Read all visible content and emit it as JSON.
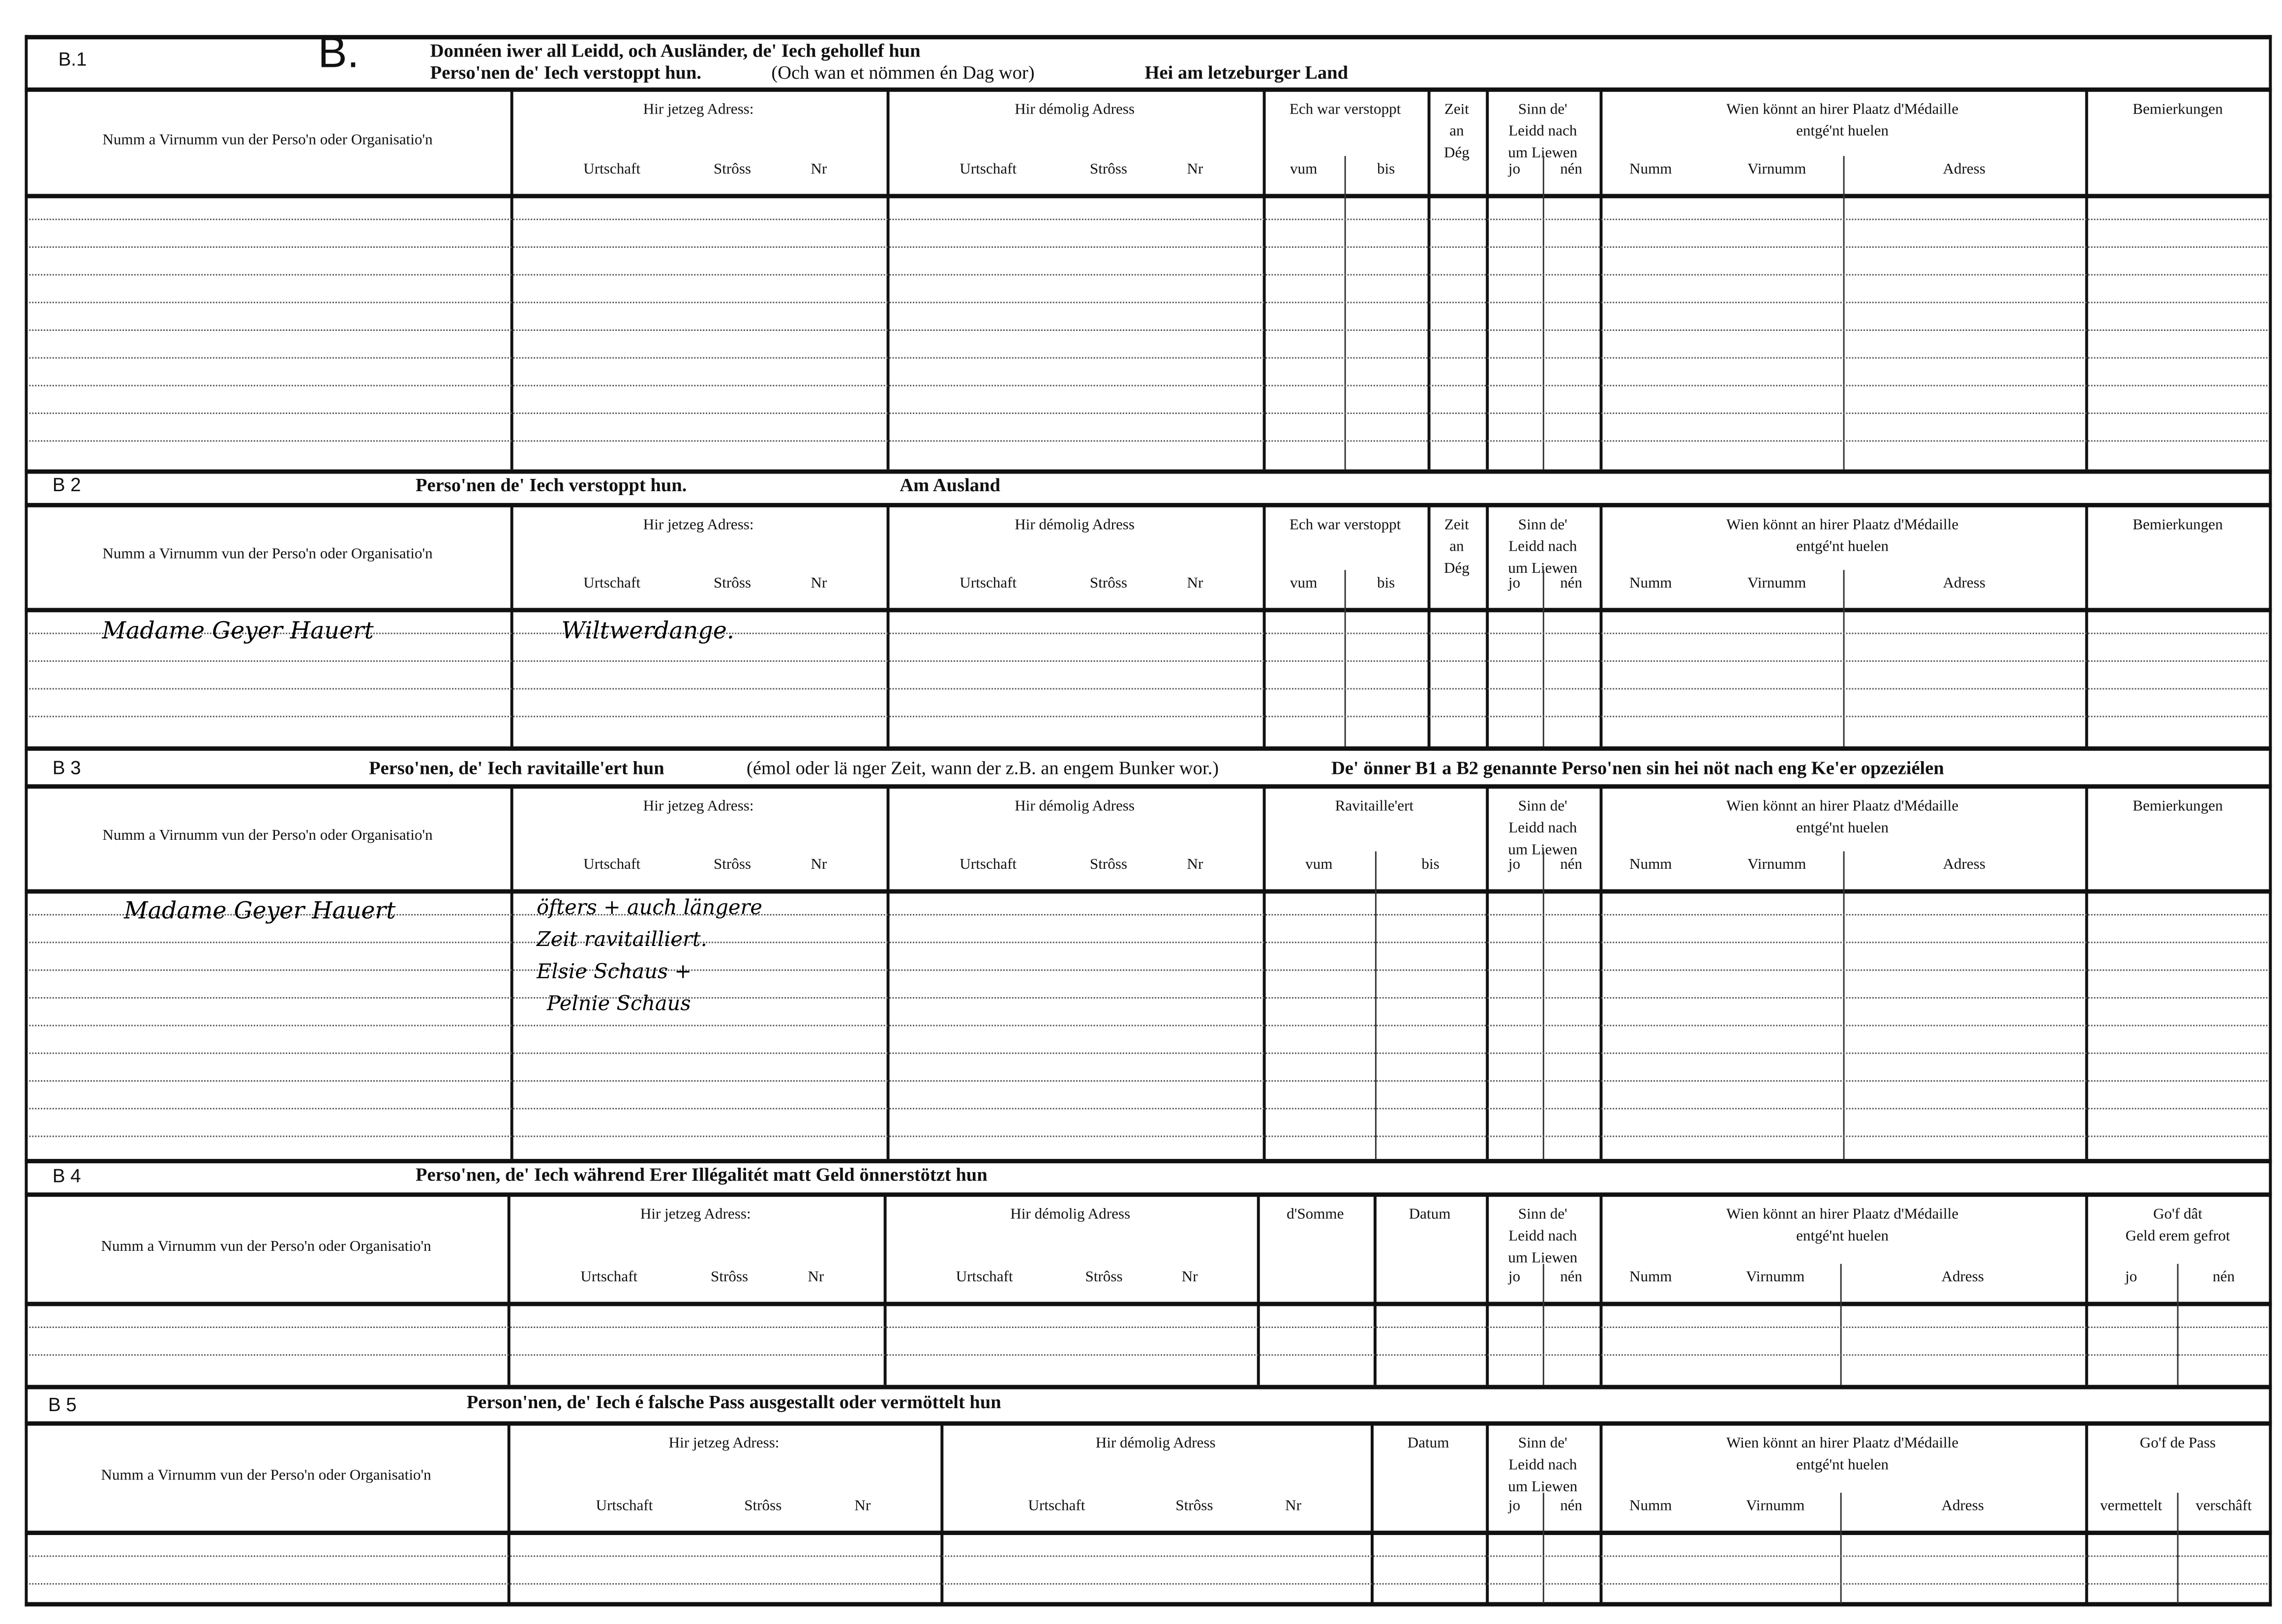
{
  "document": {
    "big_letter": "B."
  },
  "sections": [
    {
      "code": "B.1",
      "title_segments": [
        "Donnéen iwer all Leidd, och Ausländer, de' Iech gehollef hun",
        "Perso'nen de' Iech verstoppt hun.",
        "(Och wan et nömmen én Dag wor)",
        "Hei am letzeburger Land"
      ],
      "headers": [
        {
          "label": "Numm a Virnumm vun der Perso'n oder Organisatio'n"
        },
        {
          "label": "Hir jetzeg Adress:",
          "sub": [
            "Urtschaft",
            "Strôss",
            "Nr"
          ]
        },
        {
          "label": "Hir démolig Adress",
          "sub": [
            "Urtschaft",
            "Strôss",
            "Nr"
          ]
        },
        {
          "label": "Ech war verstoppt",
          "sub": [
            "vum",
            "bis"
          ]
        },
        {
          "label": "Zeit\nan\nDég"
        },
        {
          "label": "Sinn  de'\nLeidd  nach\num Liewen",
          "sub": [
            "jo",
            "nén"
          ]
        },
        {
          "label": "Wien  könnt  an  hirer  Plaatz  d'Médaille\nentgé'nt huelen",
          "sub": [
            "Numm",
            "Virnumm",
            "Adress"
          ]
        },
        {
          "label": "Bemierkungen"
        }
      ],
      "entries": []
    },
    {
      "code": "B 2",
      "title_segments": [
        "Perso'nen de' Iech verstoppt hun.",
        "Am Ausland"
      ],
      "headers": [
        {
          "label": "Numm a Virnumm vun der Perso'n oder Organisatio'n"
        },
        {
          "label": "Hir jetzeg Adress:",
          "sub": [
            "Urtschaft",
            "Strôss",
            "Nr"
          ]
        },
        {
          "label": "Hir démolig Adress",
          "sub": [
            "Urtschaft",
            "Strôss",
            "Nr"
          ]
        },
        {
          "label": "Ech war verstoppt",
          "sub": [
            "vum",
            "bis"
          ]
        },
        {
          "label": "Zeit\nan\nDég"
        },
        {
          "label": "Sinn  de'\nLeidd  nach\num Liewen",
          "sub": [
            "jo",
            "nén"
          ]
        },
        {
          "label": "Wien  könnt  an  hirer  Plaatz  d'Médaille\nentgé'nt huelen",
          "sub": [
            "Numm",
            "Virnumm",
            "Adress"
          ]
        },
        {
          "label": "Bemierkungen"
        }
      ],
      "entries": [
        "Madame Geyer Hauert",
        "Wiltwerdange."
      ]
    },
    {
      "code": "B 3",
      "title_segments": [
        "Perso'nen, de' Iech ravitaille'ert hun",
        "(émol oder lä nger Zeit, wann der z.B. an engem Bunker wor.)",
        "De' önner B1 a B2 genannte Perso'nen sin hei nöt nach eng Ke'er opzeziélen"
      ],
      "headers": [
        {
          "label": "Numm a Virnumm vun der Perso'n oder Organisatio'n"
        },
        {
          "label": "Hir jetzeg Adress:",
          "sub": [
            "Urtschaft",
            "Strôss",
            "Nr"
          ]
        },
        {
          "label": "Hir démolig Adress",
          "sub": [
            "Urtschaft",
            "Strôss",
            "Nr"
          ]
        },
        {
          "label": "Ravitaille'ert",
          "sub": [
            "vum",
            "bis"
          ]
        },
        {
          "label": "Sinn  de'\nLeidd  nach\num Liewen",
          "sub": [
            "jo",
            "nén"
          ]
        },
        {
          "label": "Wien  könnt  an  hirer  Plaatz  d'Médaille\nentgé'nt huelen",
          "sub": [
            "Numm",
            "Virnumm",
            "Adress"
          ]
        },
        {
          "label": "Bemierkungen"
        }
      ],
      "entries": [
        "Madame Geyer Hauert",
        "öfters + auch längere",
        "Zeit ravitailliert.",
        "Elsie Schaus +",
        "Pelnie Schaus"
      ]
    },
    {
      "code": "B 4",
      "title_segments": [
        "Perso'nen, de' Iech während Erer Illégalitét matt Geld önnerstötzt hun"
      ],
      "headers": [
        {
          "label": "Numm a Virnumm vun der Perso'n oder Organisatio'n"
        },
        {
          "label": "Hir jetzeg Adress:",
          "sub": [
            "Urtschaft",
            "Strôss",
            "Nr"
          ]
        },
        {
          "label": "Hir démolig Adress",
          "sub": [
            "Urtschaft",
            "Strôss",
            "Nr"
          ]
        },
        {
          "label": "d'Somme"
        },
        {
          "label": "Datum"
        },
        {
          "label": "Sinn  de'\nLeidd  nach\num Liewen",
          "sub": [
            "jo",
            "nén"
          ]
        },
        {
          "label": "Wien  könnt  an  hirer  Plaatz  d'Médaille\nentgé'nt huelen",
          "sub": [
            "Numm",
            "Virnumm",
            "Adress"
          ]
        },
        {
          "label": "Go'f  dât\nGeld  erem  gefrot",
          "sub": [
            "jo",
            "nén"
          ]
        }
      ],
      "entries": []
    },
    {
      "code": "B 5",
      "title_segments": [
        "Person'nen, de' Iech é falsche Pass ausgestallt oder  vermöttelt hun"
      ],
      "headers": [
        {
          "label": "Numm a Virnumm vun der Perso'n oder Organisatio'n"
        },
        {
          "label": "Hir jetzeg Adress:",
          "sub": [
            "Urtschaft",
            "Strôss",
            "Nr"
          ]
        },
        {
          "label": "Hir démolig Adress",
          "sub": [
            "Urtschaft",
            "Strôss",
            "Nr"
          ]
        },
        {
          "label": "Datum"
        },
        {
          "label": "Sinn  de'\nLeidd  nach\num Liewen",
          "sub": [
            "jo",
            "nén"
          ]
        },
        {
          "label": "Wien  könnt  an  hirer  Plaatz  d'Médaille\nentgé'nt huelen",
          "sub": [
            "Numm",
            "Virnumm",
            "Adress"
          ]
        },
        {
          "label": "Go'f de Pass",
          "sub": [
            "vermettelt",
            "verschâft"
          ]
        }
      ],
      "entries": []
    }
  ]
}
